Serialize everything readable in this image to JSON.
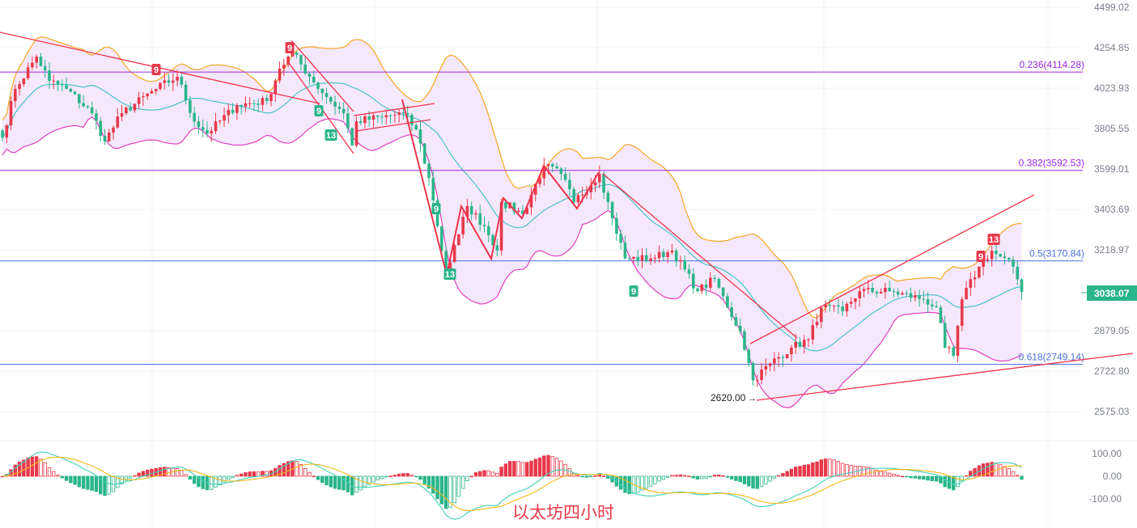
{
  "chart_data": {
    "type": "candlestick",
    "title": "以太坊四小时",
    "price_axis_ticks": [
      4499.02,
      4254.85,
      4023.93,
      3805.55,
      3599.01,
      3403.69,
      3218.97,
      2879.05,
      2722.8,
      2575.03
    ],
    "price_axis_ticks_text": [
      "4499.02",
      "4254.85",
      "4023.93",
      "3805.55",
      "3599.01",
      "3403.69",
      "3218.97",
      "2879.05",
      "2722.80",
      "2575.03"
    ],
    "price_scale": "log",
    "ylim": [
      2575.03,
      4499.02
    ],
    "macd_axis_ticks": [
      100,
      0,
      -100
    ],
    "macd_axis_ticks_text": [
      "100.00",
      "0.00",
      "-100.00"
    ],
    "current_price": "3038.07",
    "low_label": "2620.00",
    "candle_count": 240,
    "close_path": [
      [
        0,
        3759
      ],
      [
        3,
        4020
      ],
      [
        8,
        4203
      ],
      [
        11,
        4065
      ],
      [
        15,
        4020
      ],
      [
        21,
        3887
      ],
      [
        24,
        3739
      ],
      [
        28,
        3887
      ],
      [
        36,
        4020
      ],
      [
        41,
        4088
      ],
      [
        45,
        3844
      ],
      [
        48,
        3780
      ],
      [
        55,
        3931
      ],
      [
        62,
        3953
      ],
      [
        65,
        4134
      ],
      [
        68,
        4226
      ],
      [
        72,
        4088
      ],
      [
        76,
        3975
      ],
      [
        80,
        3887
      ],
      [
        82,
        3718
      ],
      [
        83,
        3844
      ],
      [
        89,
        3866
      ],
      [
        94,
        3887
      ],
      [
        97,
        3801
      ],
      [
        100,
        3555
      ],
      [
        104,
        3110
      ],
      [
        107,
        3289
      ],
      [
        109,
        3420
      ],
      [
        113,
        3326
      ],
      [
        116,
        3216
      ],
      [
        117,
        3438
      ],
      [
        122,
        3382
      ],
      [
        127,
        3615
      ],
      [
        131,
        3575
      ],
      [
        134,
        3438
      ],
      [
        140,
        3575
      ],
      [
        143,
        3363
      ],
      [
        146,
        3181
      ],
      [
        152,
        3181
      ],
      [
        157,
        3216
      ],
      [
        163,
        3041
      ],
      [
        167,
        3093
      ],
      [
        170,
        2974
      ],
      [
        173,
        2877
      ],
      [
        176,
        2689
      ],
      [
        180,
        2752
      ],
      [
        185,
        2813
      ],
      [
        189,
        2845
      ],
      [
        192,
        2974
      ],
      [
        197,
        2958
      ],
      [
        201,
        3041
      ],
      [
        208,
        3041
      ],
      [
        216,
        3007
      ],
      [
        219,
        2974
      ],
      [
        221,
        2813
      ],
      [
        223,
        2782
      ],
      [
        225,
        3007
      ],
      [
        229,
        3145
      ],
      [
        232,
        3216
      ],
      [
        237,
        3145
      ],
      [
        239,
        3038.07
      ]
    ],
    "fibonacci": [
      {
        "level": "0.236",
        "price": 4114.28,
        "label": "0.236(4114.28)",
        "color": "#9c27e0"
      },
      {
        "level": "0.382",
        "price": 3592.53,
        "label": "0.382(3592.53)",
        "color": "#9c27e0"
      },
      {
        "level": "0.5",
        "price": 3170.84,
        "label": "0.5(3170.84)",
        "color": "#4a72e0"
      },
      {
        "level": "0.618",
        "price": 2749.14,
        "label": "0.618(2749.14)",
        "color": "#4a72e0"
      }
    ],
    "td_markers": [
      {
        "text": "9",
        "color": "#e8394a"
      },
      {
        "text": "9",
        "color": "#e8394a"
      },
      {
        "text": "9",
        "color": "#2bb58a"
      },
      {
        "text": "13",
        "color": "#2bb58a"
      },
      {
        "text": "9",
        "color": "#2bb58a"
      },
      {
        "text": "13",
        "color": "#2bb58a"
      },
      {
        "text": "9",
        "color": "#2bb58a"
      },
      {
        "text": "9",
        "color": "#e8394a"
      },
      {
        "text": "13",
        "color": "#e8394a"
      }
    ],
    "indicators": [
      "Bollinger Bands (20,2)",
      "MACD"
    ],
    "colors": {
      "up": "#e8394a",
      "down": "#2bb58a",
      "upper_band": "#f5a623",
      "lower_band": "#e040c0",
      "mid_band": "#3cbfc4",
      "band_fill": "#f3e4fb",
      "dif": "#3fd3b8",
      "dea": "#f5b81a"
    }
  }
}
